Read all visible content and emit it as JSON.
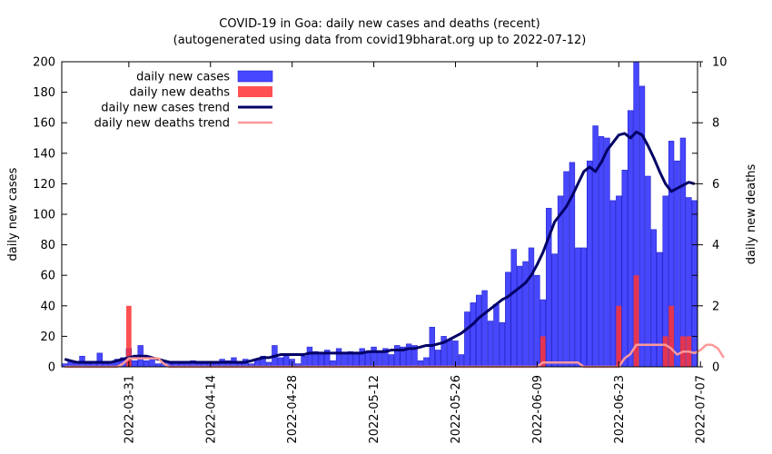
{
  "chart_data": {
    "type": "bar",
    "title": "COVID-19 in Goa: daily new cases and deaths (recent)",
    "subtitle": "(autogenerated using data from covid19bharat.org up to 2022-07-12)",
    "ylabel": "daily new cases",
    "y2label": "daily new deaths",
    "ylim": [
      0,
      200
    ],
    "y2lim": [
      0,
      10
    ],
    "yticks": [
      "0",
      "20",
      "40",
      "60",
      "80",
      "100",
      "120",
      "140",
      "160",
      "180",
      "200"
    ],
    "y2ticks": [
      "0",
      "2",
      "4",
      "6",
      "8",
      "10"
    ],
    "start_date": "2022-03-20",
    "xticks": [
      {
        "label": "2022-03-31",
        "day": 11
      },
      {
        "label": "2022-04-14",
        "day": 25
      },
      {
        "label": "2022-04-28",
        "day": 39
      },
      {
        "label": "2022-05-12",
        "day": 53
      },
      {
        "label": "2022-05-26",
        "day": 67
      },
      {
        "label": "2022-06-09",
        "day": 81
      },
      {
        "label": "2022-06-23",
        "day": 95
      },
      {
        "label": "2022-07-07",
        "day": 109
      }
    ],
    "legend_position": "top-left",
    "series": [
      {
        "name": "daily new cases",
        "kind": "bar",
        "axis": "y",
        "color": "#3333ff",
        "values": [
          2,
          4,
          3,
          7,
          2,
          3,
          9,
          2,
          3,
          5,
          6,
          12,
          4,
          14,
          4,
          5,
          2,
          3,
          2,
          3,
          2,
          3,
          4,
          2,
          2,
          3,
          2,
          5,
          4,
          6,
          2,
          5,
          2,
          5,
          7,
          3,
          14,
          6,
          8,
          5,
          2,
          7,
          13,
          10,
          9,
          11,
          4,
          12,
          9,
          10,
          8,
          12,
          9,
          13,
          10,
          12,
          8,
          14,
          13,
          15,
          14,
          4,
          6,
          26,
          11,
          20,
          18,
          17,
          8,
          36,
          42,
          47,
          50,
          30,
          41,
          29,
          62,
          77,
          66,
          69,
          78,
          60,
          44,
          104,
          74,
          112,
          128,
          134,
          78,
          78,
          135,
          158,
          151,
          150,
          109,
          112,
          129,
          168,
          200,
          184,
          125,
          90,
          75,
          112,
          148,
          135,
          150,
          111,
          109
        ]
      },
      {
        "name": "daily new deaths",
        "kind": "bar",
        "axis": "y2",
        "color": "#ff3333",
        "values": [
          0,
          0,
          0,
          0,
          0,
          0,
          0,
          0,
          0,
          0,
          0,
          2,
          0,
          0,
          0,
          0,
          0,
          0,
          0,
          0,
          0,
          0,
          0,
          0,
          0,
          0,
          0,
          0,
          0,
          0,
          0,
          0,
          0,
          0,
          0,
          0,
          0,
          0,
          0,
          0,
          0,
          0,
          0,
          0,
          0,
          0,
          0,
          0,
          0,
          0,
          0,
          0,
          0,
          0,
          0,
          0,
          0,
          0,
          0,
          0,
          0,
          0,
          0,
          0,
          0,
          0,
          0,
          0,
          0,
          0,
          0,
          0,
          0,
          0,
          0,
          0,
          0,
          0,
          0,
          0,
          0,
          0,
          1,
          0,
          0,
          0,
          0,
          0,
          0,
          0,
          0,
          0,
          0,
          0,
          0,
          2,
          0,
          0,
          3,
          0,
          0,
          0,
          0,
          1,
          2,
          0,
          1,
          1,
          0
        ]
      },
      {
        "name": "daily new cases trend",
        "kind": "line",
        "axis": "y",
        "color": "#000066",
        "values": [
          5,
          4,
          3,
          3,
          3,
          3,
          3,
          3,
          3,
          4,
          5,
          6,
          7,
          7,
          7,
          6,
          5,
          4,
          3,
          3,
          3,
          3,
          3,
          3,
          3,
          3,
          3,
          3,
          3,
          3,
          3,
          3,
          4,
          5,
          6,
          6,
          7,
          8,
          8,
          8,
          8,
          8,
          9,
          9,
          9,
          9,
          9,
          9,
          9,
          9,
          9,
          9,
          10,
          10,
          10,
          10,
          11,
          11,
          11,
          12,
          12,
          13,
          14,
          14,
          15,
          16,
          18,
          20,
          22,
          25,
          28,
          32,
          35,
          38,
          41,
          44,
          46,
          49,
          52,
          55,
          60,
          67,
          75,
          85,
          95,
          100,
          105,
          112,
          120,
          128,
          131,
          128,
          134,
          142,
          147,
          152,
          153,
          150,
          154,
          152,
          145,
          137,
          128,
          120,
          115,
          117,
          119,
          121,
          120
        ]
      },
      {
        "name": "daily new deaths trend",
        "kind": "line",
        "axis": "y2",
        "color": "#ff9999",
        "values": [
          0,
          0,
          0,
          0,
          0,
          0,
          0,
          0,
          0,
          0,
          0.1,
          0.28,
          0.28,
          0.28,
          0.28,
          0.28,
          0.28,
          0.1,
          0,
          0,
          0,
          0,
          0,
          0,
          0,
          0,
          0,
          0,
          0,
          0,
          0,
          0,
          0,
          0,
          0,
          0,
          0,
          0,
          0,
          0,
          0,
          0,
          0,
          0,
          0,
          0,
          0,
          0,
          0,
          0,
          0,
          0,
          0,
          0,
          0,
          0,
          0,
          0,
          0,
          0,
          0,
          0,
          0,
          0,
          0,
          0,
          0,
          0,
          0,
          0,
          0,
          0,
          0,
          0,
          0,
          0,
          0,
          0,
          0,
          0,
          0,
          0,
          0.14,
          0.14,
          0.14,
          0.14,
          0.14,
          0.14,
          0.14,
          0,
          0,
          0,
          0,
          0,
          0,
          0,
          0.28,
          0.42,
          0.72,
          0.72,
          0.72,
          0.72,
          0.72,
          0.72,
          0.6,
          0.4,
          0.5,
          0.5,
          0.45,
          0.55,
          0.72,
          0.72,
          0.6,
          0.3
        ]
      }
    ]
  }
}
